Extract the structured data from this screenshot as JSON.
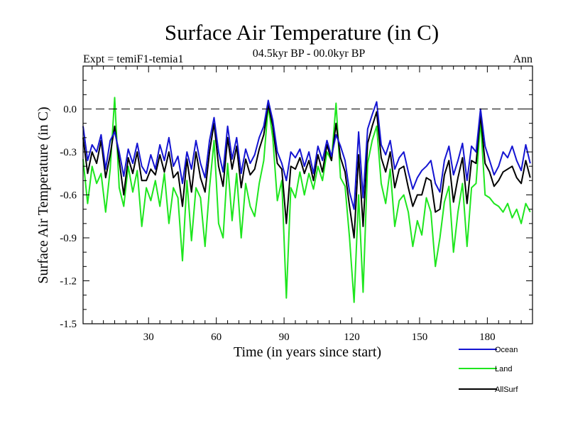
{
  "chart_data": {
    "type": "line",
    "title": "Surface Air Temperature (in C)",
    "subtitle": "04.5kyr BP - 00.0kyr BP",
    "left_label": "Expt = temiF1-temia1",
    "right_label": "Ann",
    "xlabel": "Time (in years since start)",
    "ylabel": "Surface Air Temperature (in C)",
    "xlim": [
      1,
      200
    ],
    "ylim": [
      -1.5,
      0.3
    ],
    "x_ticks": [
      30,
      60,
      90,
      120,
      150,
      180
    ],
    "x_tick_labels": [
      "30",
      "60",
      "90",
      "120",
      "150",
      "180"
    ],
    "y_ticks": [
      0.0,
      -0.3,
      -0.6,
      -0.9,
      -1.2,
      -1.5
    ],
    "y_tick_labels": [
      "0.0",
      "-0.3",
      "-0.6",
      "-0.9",
      "-1.2",
      "-1.5"
    ],
    "reference_line": 0.0,
    "x": [
      1,
      3,
      5,
      7,
      9,
      11,
      13,
      15,
      17,
      19,
      21,
      23,
      25,
      27,
      29,
      31,
      33,
      35,
      37,
      39,
      41,
      43,
      45,
      47,
      49,
      51,
      53,
      55,
      57,
      59,
      61,
      63,
      65,
      67,
      69,
      71,
      73,
      75,
      77,
      79,
      81,
      83,
      85,
      87,
      89,
      91,
      93,
      95,
      97,
      99,
      101,
      103,
      105,
      107,
      109,
      111,
      113,
      115,
      117,
      119,
      121,
      123,
      125,
      127,
      129,
      131,
      133,
      135,
      137,
      139,
      141,
      143,
      145,
      147,
      149,
      151,
      153,
      155,
      157,
      159,
      161,
      163,
      165,
      167,
      169,
      171,
      173,
      175,
      177,
      179,
      181,
      183,
      185,
      187,
      189,
      191,
      193,
      195,
      197,
      199
    ],
    "series": [
      {
        "name": "Ocean",
        "color": "#1414d2",
        "values": [
          -0.12,
          -0.36,
          -0.25,
          -0.3,
          -0.18,
          -0.42,
          -0.22,
          -0.16,
          -0.3,
          -0.47,
          -0.28,
          -0.38,
          -0.24,
          -0.4,
          -0.45,
          -0.32,
          -0.42,
          -0.25,
          -0.36,
          -0.2,
          -0.4,
          -0.33,
          -0.52,
          -0.3,
          -0.42,
          -0.22,
          -0.38,
          -0.48,
          -0.22,
          -0.06,
          -0.3,
          -0.44,
          -0.12,
          -0.35,
          -0.2,
          -0.45,
          -0.28,
          -0.38,
          -0.32,
          -0.2,
          -0.12,
          0.06,
          -0.08,
          -0.3,
          -0.38,
          -0.5,
          -0.3,
          -0.34,
          -0.28,
          -0.4,
          -0.3,
          -0.45,
          -0.26,
          -0.36,
          -0.22,
          -0.33,
          -0.18,
          -0.26,
          -0.36,
          -0.58,
          -0.7,
          -0.16,
          -0.62,
          -0.14,
          -0.04,
          0.05,
          -0.25,
          -0.32,
          -0.22,
          -0.42,
          -0.34,
          -0.3,
          -0.44,
          -0.56,
          -0.48,
          -0.43,
          -0.4,
          -0.36,
          -0.52,
          -0.58,
          -0.36,
          -0.26,
          -0.46,
          -0.36,
          -0.24,
          -0.5,
          -0.26,
          -0.3,
          0.0,
          -0.26,
          -0.36,
          -0.46,
          -0.4,
          -0.3,
          -0.34,
          -0.26,
          -0.36,
          -0.43,
          -0.25,
          -0.38
        ]
      },
      {
        "name": "Land",
        "color": "#1ee61e",
        "values": [
          -0.35,
          -0.66,
          -0.4,
          -0.52,
          -0.45,
          -0.72,
          -0.42,
          0.08,
          -0.55,
          -0.68,
          -0.4,
          -0.58,
          -0.43,
          -0.82,
          -0.55,
          -0.64,
          -0.5,
          -0.68,
          -0.45,
          -0.8,
          -0.55,
          -0.62,
          -1.06,
          -0.5,
          -0.92,
          -0.55,
          -0.62,
          -0.96,
          -0.55,
          -0.22,
          -0.8,
          -0.9,
          -0.38,
          -0.78,
          -0.45,
          -0.9,
          -0.52,
          -0.68,
          -0.75,
          -0.52,
          -0.36,
          0.02,
          -0.2,
          -0.64,
          -0.5,
          -1.32,
          -0.55,
          -0.62,
          -0.44,
          -0.6,
          -0.45,
          -0.56,
          -0.4,
          -0.5,
          -0.3,
          -0.36,
          0.04,
          -0.48,
          -0.54,
          -0.9,
          -1.35,
          -0.6,
          -1.28,
          -0.38,
          -0.22,
          -0.12,
          -0.52,
          -0.66,
          -0.42,
          -0.82,
          -0.64,
          -0.6,
          -0.72,
          -0.96,
          -0.78,
          -0.88,
          -0.62,
          -0.72,
          -1.1,
          -0.9,
          -0.65,
          -0.54,
          -1.0,
          -0.72,
          -0.52,
          -0.96,
          -0.55,
          -0.52,
          -0.08,
          -0.6,
          -0.62,
          -0.66,
          -0.68,
          -0.72,
          -0.66,
          -0.76,
          -0.7,
          -0.8,
          -0.66,
          -0.72
        ]
      },
      {
        "name": "AllSurf",
        "color": "#000000",
        "values": [
          -0.2,
          -0.45,
          -0.3,
          -0.38,
          -0.22,
          -0.48,
          -0.32,
          -0.12,
          -0.36,
          -0.6,
          -0.34,
          -0.45,
          -0.3,
          -0.5,
          -0.5,
          -0.42,
          -0.46,
          -0.32,
          -0.44,
          -0.3,
          -0.48,
          -0.44,
          -0.68,
          -0.35,
          -0.58,
          -0.3,
          -0.48,
          -0.58,
          -0.3,
          -0.1,
          -0.4,
          -0.54,
          -0.2,
          -0.42,
          -0.26,
          -0.55,
          -0.35,
          -0.46,
          -0.42,
          -0.28,
          -0.18,
          0.03,
          -0.12,
          -0.38,
          -0.42,
          -0.8,
          -0.4,
          -0.42,
          -0.34,
          -0.45,
          -0.36,
          -0.5,
          -0.32,
          -0.44,
          -0.25,
          -0.36,
          -0.1,
          -0.34,
          -0.44,
          -0.68,
          -0.9,
          -0.32,
          -0.82,
          -0.24,
          -0.12,
          -0.02,
          -0.34,
          -0.44,
          -0.3,
          -0.55,
          -0.42,
          -0.4,
          -0.55,
          -0.68,
          -0.6,
          -0.6,
          -0.48,
          -0.5,
          -0.72,
          -0.7,
          -0.46,
          -0.36,
          -0.65,
          -0.48,
          -0.34,
          -0.66,
          -0.36,
          -0.38,
          -0.04,
          -0.38,
          -0.44,
          -0.54,
          -0.5,
          -0.44,
          -0.42,
          -0.4,
          -0.48,
          -0.52,
          -0.36,
          -0.48
        ]
      }
    ],
    "legend": {
      "placement": "bottom-right",
      "entries": [
        "Ocean",
        "Land",
        "AllSurf"
      ]
    }
  }
}
